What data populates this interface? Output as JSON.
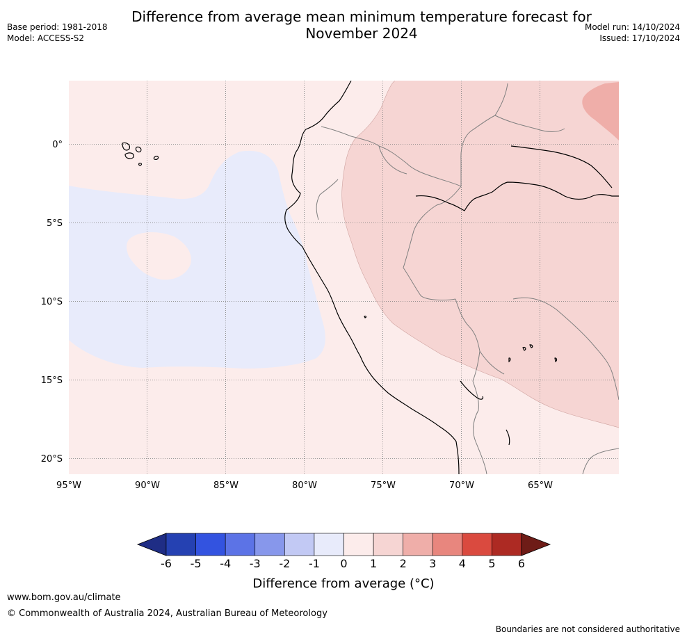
{
  "title_line1": "Difference from average mean minimum temperature forecast for",
  "title_line2": "November 2024",
  "meta_left": {
    "base_period": "Base period: 1981-2018",
    "model": "Model: ACCESS-S2"
  },
  "meta_right": {
    "model_run": "Model run: 14/10/2024",
    "issued": "Issued: 17/10/2024"
  },
  "map": {
    "lon_ticks": [
      "95°W",
      "90°W",
      "85°W",
      "80°W",
      "75°W",
      "70°W",
      "65°W"
    ],
    "lat_ticks": [
      "0°",
      "5°S",
      "10°S",
      "15°S",
      "20°S"
    ]
  },
  "colorbar": {
    "title": "Difference from average (°C)",
    "labels": [
      "-6",
      "-5",
      "-4",
      "-3",
      "-2",
      "-1",
      "0",
      "1",
      "2",
      "3",
      "4",
      "5",
      "6"
    ],
    "colors": [
      "#1f2d85",
      "#2541b2",
      "#3353e0",
      "#5c73e6",
      "#8797eb",
      "#c2c9f4",
      "#e8ebfb",
      "#fceceb",
      "#f6d5d3",
      "#efaea9",
      "#e8867e",
      "#da4a3f",
      "#ad2a23",
      "#6e1c17"
    ]
  },
  "footer": {
    "url": "www.bom.gov.au/climate",
    "copyright": "© Commonwealth of Australia 2024, Australian Bureau of Meteorology",
    "note": "Boundaries are not considered authoritative"
  }
}
